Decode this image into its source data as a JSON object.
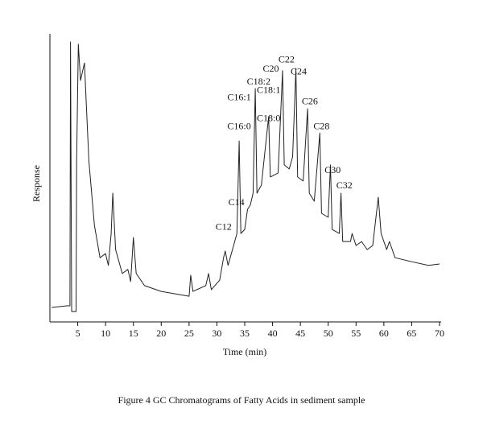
{
  "chart_data": {
    "type": "line",
    "caption": "Figure 4 GC Chromatograms of Fatty Acids in sediment sample",
    "x_label": "Time (min)",
    "y_label": "Response",
    "xlim": [
      0,
      70
    ],
    "xticks": [
      5,
      10,
      15,
      20,
      25,
      30,
      35,
      40,
      45,
      50,
      55,
      60,
      65,
      70
    ],
    "ylim": [
      0,
      100
    ],
    "color": "#222222",
    "x": [
      0.3,
      3,
      3.6,
      3.7,
      3.9,
      4.7,
      4.8,
      5.1,
      5.5,
      6.2,
      7,
      8,
      8.5,
      9,
      10,
      10.5,
      11,
      11.3,
      11.8,
      13,
      14,
      14.5,
      15,
      15.5,
      17,
      20,
      25,
      25.3,
      25.7,
      28,
      28.5,
      29,
      30.5,
      31.2,
      31.5,
      32,
      33,
      33.6,
      34,
      34.3,
      35,
      35.5,
      36,
      36.5,
      36.9,
      37.2,
      38,
      39.3,
      39.6,
      41,
      41.8,
      42.1,
      43,
      43.6,
      44.2,
      44.5,
      45.5,
      46.3,
      46.6,
      47.5,
      48.5,
      48.8,
      50,
      50.4,
      50.7,
      52,
      52.3,
      52.6,
      54,
      54.3,
      55,
      56,
      57,
      58,
      59,
      59.5,
      60.5,
      61,
      62,
      65,
      68,
      70
    ],
    "values": [
      5.0,
      5.6,
      5.6,
      97.2,
      3.6,
      3.6,
      55.9,
      96.4,
      83.8,
      89.9,
      55.9,
      33.5,
      27.9,
      22.3,
      23.7,
      19.6,
      30.7,
      44.7,
      25.1,
      16.8,
      18.2,
      14.0,
      29.3,
      16.8,
      12.6,
      10.6,
      8.9,
      16.2,
      10.6,
      12.6,
      16.8,
      11.2,
      14.5,
      22.3,
      24.6,
      19.6,
      26.5,
      30.7,
      62.8,
      30.7,
      32.1,
      39.1,
      40.5,
      44.7,
      81.0,
      44.7,
      47.5,
      71.2,
      50.3,
      51.7,
      87.2,
      54.5,
      53.1,
      57.3,
      88.0,
      50.3,
      48.9,
      74.0,
      44.7,
      41.9,
      65.6,
      37.7,
      36.3,
      54.5,
      32.1,
      30.7,
      44.7,
      27.9,
      27.9,
      30.7,
      26.5,
      27.9,
      25.1,
      26.5,
      43.3,
      30.7,
      25.1,
      27.9,
      22.3,
      20.9,
      19.6,
      20.1
    ],
    "annotations": [
      {
        "text": "C12",
        "x": 31.2,
        "y": 32.7
      },
      {
        "text": "C14",
        "x": 33.5,
        "y": 41.3
      },
      {
        "text": "C16:1",
        "x": 34,
        "y": 77.7
      },
      {
        "text": "C16:0",
        "x": 34,
        "y": 67.6
      },
      {
        "text": "C18:2",
        "x": 37.5,
        "y": 83.2
      },
      {
        "text": "C18:1",
        "x": 39.3,
        "y": 80.2
      },
      {
        "text": "C18:0",
        "x": 39.3,
        "y": 70.4
      },
      {
        "text": "C20",
        "x": 39.7,
        "y": 87.7
      },
      {
        "text": "C22",
        "x": 42.5,
        "y": 90.8
      },
      {
        "text": "C24",
        "x": 44.7,
        "y": 86.6
      },
      {
        "text": "C26",
        "x": 46.7,
        "y": 76.3
      },
      {
        "text": "C28",
        "x": 48.8,
        "y": 67.6
      },
      {
        "text": "C30",
        "x": 50.8,
        "y": 52.5
      },
      {
        "text": "C32",
        "x": 52.9,
        "y": 47.2
      }
    ]
  }
}
